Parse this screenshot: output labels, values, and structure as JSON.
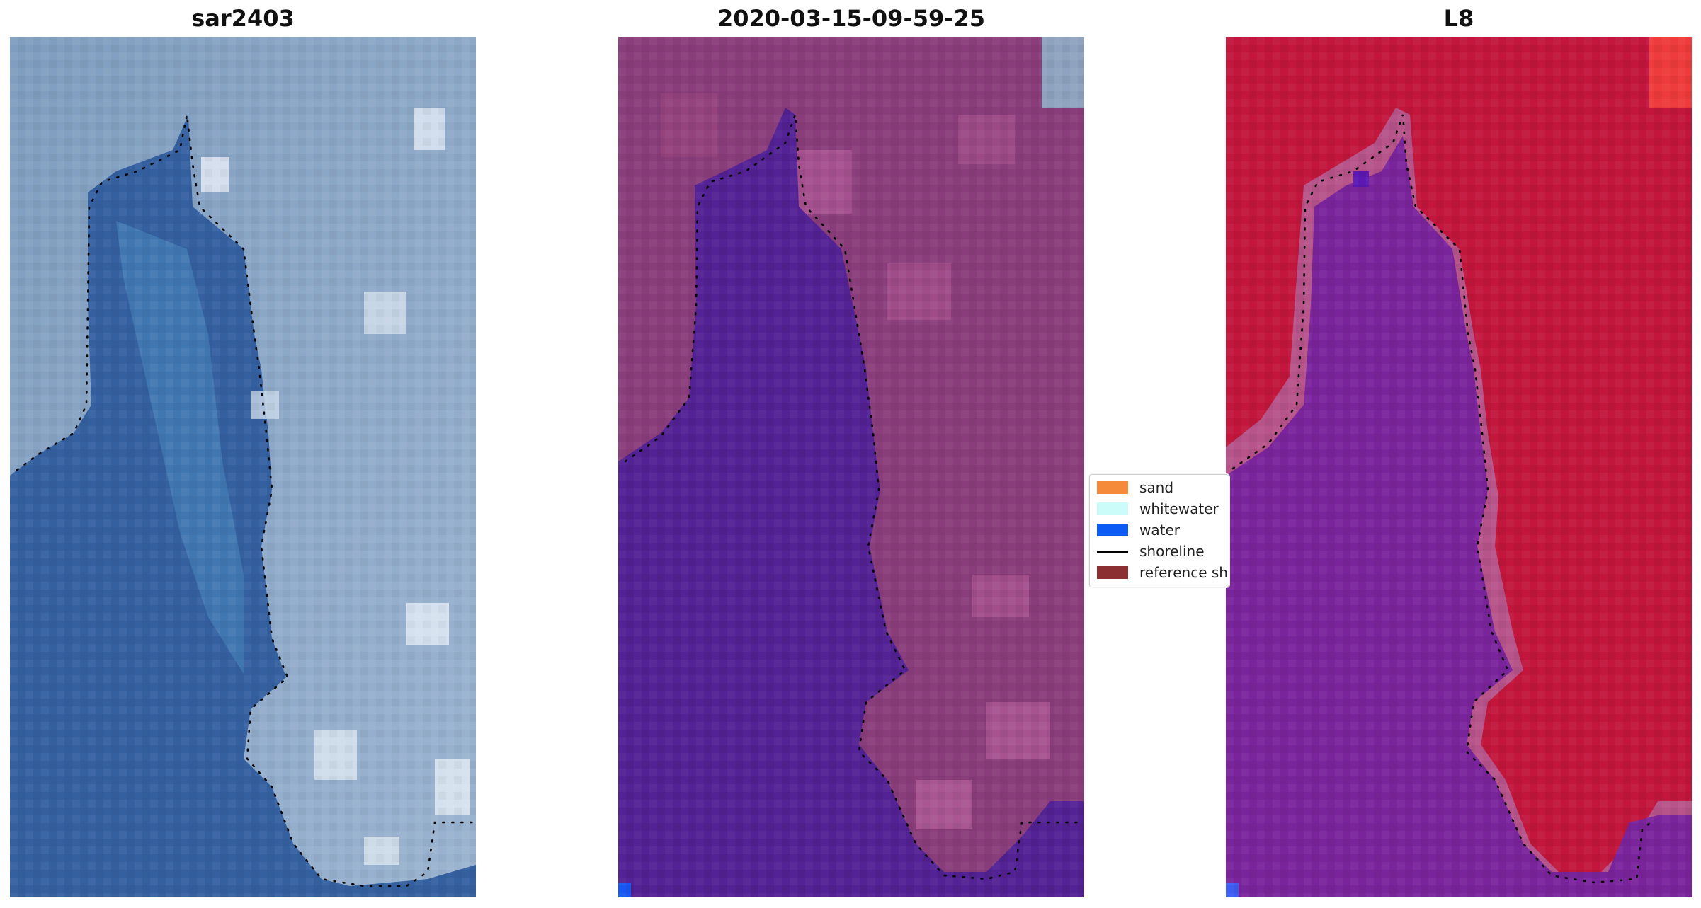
{
  "panels": [
    {
      "title": "sar2403",
      "view": "true-color"
    },
    {
      "title": "2020-03-15-09-59-25",
      "view": "classified"
    },
    {
      "title": "L8",
      "view": "classified"
    }
  ],
  "legend": {
    "items": [
      {
        "label": "sand",
        "color": "#f58a3a",
        "kind": "patch"
      },
      {
        "label": "whitewater",
        "color": "#ccfcf9",
        "kind": "patch"
      },
      {
        "label": "water",
        "color": "#0d5bf5",
        "kind": "patch"
      },
      {
        "label": "shoreline",
        "color": "#000000",
        "kind": "line"
      },
      {
        "label": "reference shoreline",
        "color": "#8c2f33",
        "kind": "patch"
      }
    ]
  },
  "colors": {
    "panel1_water": "#3563a3",
    "panel1_land": "#8aa6c6",
    "panel2_water": "#532294",
    "panel2_land": "#8c3f7c",
    "panel3_water": "#7a259c",
    "panel3_land": "#c2163c",
    "shoreline_dots": "#000000"
  }
}
